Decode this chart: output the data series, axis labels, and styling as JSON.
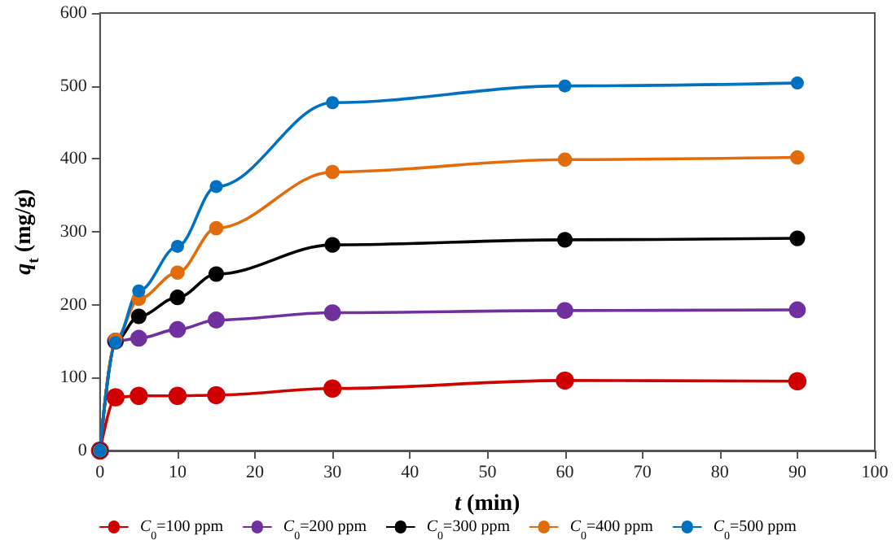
{
  "chart_data": {
    "type": "line",
    "xlabel": "t (min)",
    "ylabel": "q$_{t}$ (mg/g)",
    "x": [
      0,
      2,
      5,
      10,
      15,
      30,
      60,
      90
    ],
    "series": [
      {
        "name": "C$_{0}$=100 ppm",
        "color": "#d00000",
        "values": [
          0,
          73,
          75,
          75,
          76,
          85,
          96,
          95
        ]
      },
      {
        "name": "C$_{0}$=200 ppm",
        "color": "#7030a0",
        "values": [
          0,
          150,
          154,
          166,
          179,
          189,
          192,
          193
        ]
      },
      {
        "name": "C$_{0}$=300 ppm",
        "color": "#000000",
        "values": [
          0,
          150,
          184,
          210,
          242,
          282,
          289,
          291
        ]
      },
      {
        "name": "C$_{0}$=400 ppm",
        "color": "#e36c0a",
        "values": [
          0,
          152,
          208,
          244,
          305,
          382,
          399,
          402
        ]
      },
      {
        "name": "C$_{0}$=500 ppm",
        "color": "#0070c0",
        "values": [
          0,
          148,
          219,
          280,
          362,
          477,
          500,
          504
        ]
      }
    ],
    "xlim": [
      0,
      100
    ],
    "xticks": [
      0,
      10,
      20,
      30,
      40,
      50,
      60,
      70,
      80,
      90,
      100
    ],
    "ylim": [
      0,
      600
    ],
    "yticks": [
      0,
      100,
      200,
      300,
      400,
      500,
      600
    ],
    "grid": false,
    "legend": "bottom",
    "marker": "circle",
    "line_style": "solid"
  }
}
